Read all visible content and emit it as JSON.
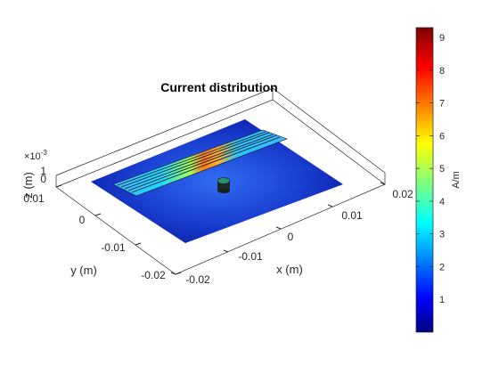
{
  "chart_data": {
    "type": "heatmap",
    "title": "Current distribution",
    "xlabel": "x (m)",
    "ylabel": "y (m)",
    "zlabel": "z (m)",
    "x_ticks": [
      "-0.02",
      "-0.01",
      "0",
      "0.01",
      "0.02"
    ],
    "y_ticks": [
      "-0.02",
      "-0.01",
      "0",
      "0.01"
    ],
    "z_ticks": [
      "0",
      "1"
    ],
    "z_exponent": "×10",
    "z_exponent_power": "-3",
    "colorbar": {
      "label": "A/m",
      "ticks": [
        "1",
        "2",
        "3",
        "4",
        "5",
        "6",
        "7",
        "8",
        "9"
      ],
      "tick_values": [
        1,
        2,
        3,
        4,
        5,
        6,
        7,
        8,
        9
      ],
      "min": 0,
      "max": 9.3,
      "colormap": "jet"
    },
    "current_magnitude": {
      "ground_plane": 0.5,
      "strip_ends": 3.3,
      "strip_center_peak": 8.8,
      "feed_post": 3.5
    }
  },
  "colors": {
    "background": "#ffffff",
    "axes_box": "#262626",
    "ground_dark": "#0a1aa8",
    "ground_light": "#2f6df2",
    "strip_low": "#3fb7ff",
    "strip_mid": "#9cff5f",
    "strip_high": "#ff7a1a"
  }
}
